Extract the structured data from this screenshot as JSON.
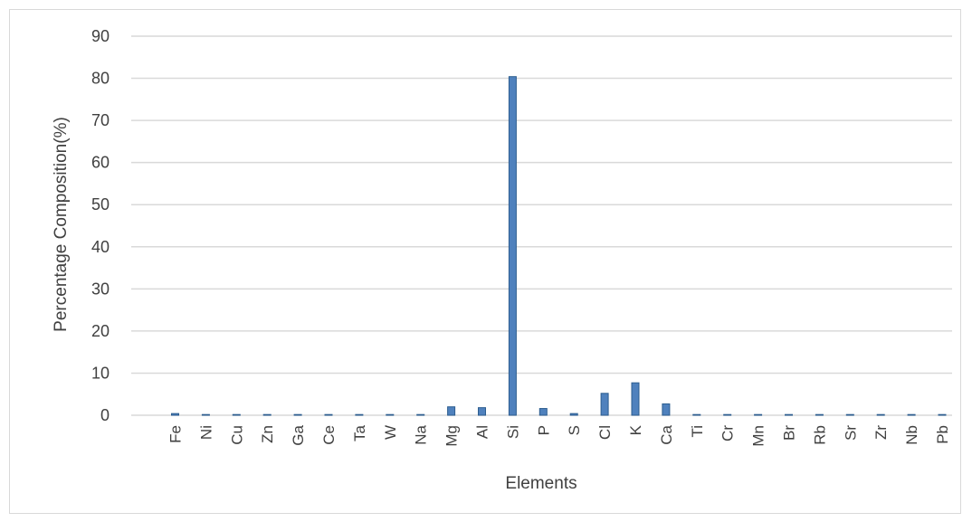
{
  "chart_data": {
    "type": "bar",
    "title": "",
    "xlabel": "Elements",
    "ylabel": "Percentage Composition(%)",
    "ylim": [
      0,
      90
    ],
    "y_ticks": [
      0,
      10,
      20,
      30,
      40,
      50,
      60,
      70,
      80,
      90
    ],
    "grid": true,
    "legend": "none",
    "categories": [
      "Fe",
      "Ni",
      "Cu",
      "Zn",
      "Ga",
      "Ce",
      "Ta",
      "W",
      "Na",
      "Mg",
      "Al",
      "Si",
      "P",
      "S",
      "Cl",
      "K",
      "Ca",
      "Ti",
      "Cr",
      "Mn",
      "Br",
      "Rb",
      "Sr",
      "Zr",
      "Nb",
      "Pb"
    ],
    "series": [
      {
        "values": [
          0.4,
          0.05,
          0.05,
          0.05,
          0.02,
          0.02,
          0.02,
          0.02,
          0.05,
          2.0,
          1.8,
          80.4,
          1.6,
          0.4,
          5.2,
          7.7,
          2.7,
          0.1,
          0.05,
          0.05,
          0.02,
          0.02,
          0.02,
          0.02,
          0.02,
          0.02
        ],
        "color": "#4f81bd",
        "border_color": "#2c5d8f"
      }
    ],
    "grid_color": "#d9d9d9",
    "text_color": "#404040"
  }
}
